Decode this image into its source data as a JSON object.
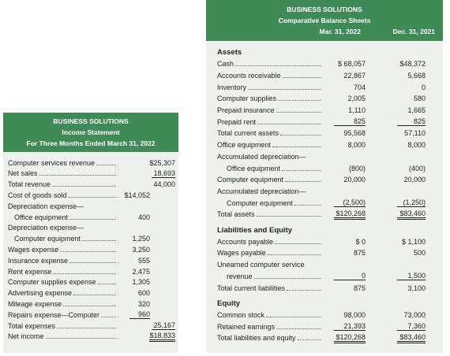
{
  "income_statement": {
    "header": [
      "BUSINESS SOLUTIONS",
      "Income Statement",
      "For Three Months Ended March 31, 2022"
    ],
    "rows": [
      {
        "label": "Computer services revenue",
        "c2": "$25,307"
      },
      {
        "label": "Net sales",
        "c2": "18,693",
        "rule2": "single"
      },
      {
        "label": "Total revenue",
        "c2": "44,000"
      },
      {
        "label": "Cost of goods sold",
        "c1": "$14,052"
      },
      {
        "label": "Depreciation expense—"
      },
      {
        "label": "Office equipment",
        "c1": "400",
        "indent": true
      },
      {
        "label": "Depreciation expense—"
      },
      {
        "label": "Computer equipment",
        "c1": "1,250",
        "indent": true
      },
      {
        "label": "Wages expense",
        "c1": "3,250"
      },
      {
        "label": "Insurance expense",
        "c1": "555"
      },
      {
        "label": "Rent expense",
        "c1": "2,475"
      },
      {
        "label": "Computer supplies expense",
        "c1": "1,305"
      },
      {
        "label": "Advertising expense",
        "c1": "600"
      },
      {
        "label": "Mileage expense",
        "c1": "320"
      },
      {
        "label": "Repairs expense—Computer",
        "c1": "960",
        "rule1": "single"
      },
      {
        "label": "Total expenses",
        "c2": "25,167",
        "rule2": "single"
      },
      {
        "label": "Net income",
        "c2": "$18,833",
        "rule2": "double"
      }
    ]
  },
  "balance_sheet": {
    "header": [
      "BUSINESS SOLUTIONS",
      "Comparative Balance Sheets"
    ],
    "columns": [
      "Mar. 31, 2022",
      "Dec. 31, 2021"
    ],
    "rows": [
      {
        "heading": "Assets"
      },
      {
        "label": "Cash",
        "c1": "$ 68,057",
        "c2": "$48,372"
      },
      {
        "label": "Accounts receivable",
        "c1": "22,867",
        "c2": "5,668"
      },
      {
        "label": "Inventory",
        "c1": "704",
        "c2": "0"
      },
      {
        "label": "Computer supplies",
        "c1": "2,005",
        "c2": "580"
      },
      {
        "label": "Prepaid insurance",
        "c1": "1,110",
        "c2": "1,665"
      },
      {
        "label": "Prepaid rent",
        "c1": "825",
        "c2": "825",
        "rule": "single"
      },
      {
        "label": "Total current assets",
        "c1": "95,568",
        "c2": "57,110"
      },
      {
        "label": "Office equipment",
        "c1": "8,000",
        "c2": "8,000"
      },
      {
        "label": "Accumulated depreciation—"
      },
      {
        "label": "Office equipment",
        "c1": "(800)",
        "c2": "(400)",
        "indent": true
      },
      {
        "label": "Computer equipment",
        "c1": "20,000",
        "c2": "20,000"
      },
      {
        "label": "Accumulated depreciation—"
      },
      {
        "label": "Computer equipment",
        "c1": "(2,500)",
        "c2": "(1,250)",
        "indent": true,
        "rule": "single"
      },
      {
        "label": "Total assets",
        "c1": "$120,268",
        "c2": "$83,460",
        "rule": "double"
      },
      {
        "heading": "Liabilities and Equity"
      },
      {
        "label": "Accounts payable",
        "c1": "$ 0",
        "c2": "$ 1,100"
      },
      {
        "label": "Wages payable",
        "c1": "875",
        "c2": "500"
      },
      {
        "label": "Unearned computer service"
      },
      {
        "label": "revenue",
        "c1": "0",
        "c2": "1,500",
        "indent": true,
        "rule": "single"
      },
      {
        "label": "Total current liabilities",
        "c1": "875",
        "c2": "3,100"
      },
      {
        "heading": "Equity"
      },
      {
        "label": "Common stock",
        "c1": "98,000",
        "c2": "73,000"
      },
      {
        "label": "Retained earnings",
        "c1": "21,393",
        "c2": "7,360",
        "rule": "single"
      },
      {
        "label": "Total liabilities and equity",
        "c1": "$120,268",
        "c2": "$83,460",
        "rule": "double"
      }
    ]
  }
}
